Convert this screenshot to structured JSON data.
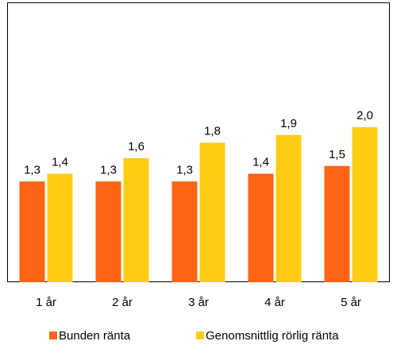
{
  "chart_data": {
    "type": "bar",
    "categories": [
      "1 år",
      "2 år",
      "3 år",
      "4 år",
      "5 år"
    ],
    "series": [
      {
        "name": "Bunden ränta",
        "color": "#FF6414",
        "values": [
          1.3,
          1.3,
          1.3,
          1.4,
          1.5
        ],
        "labels": [
          "1,3",
          "1,3",
          "1,3",
          "1,4",
          "1,5"
        ]
      },
      {
        "name": "Genomsnittlig rörlig ränta",
        "color": "#FFCC14",
        "values": [
          1.4,
          1.6,
          1.8,
          1.9,
          2.0
        ],
        "labels": [
          "1,4",
          "1,6",
          "1,8",
          "1,9",
          "2,0"
        ]
      }
    ],
    "title": "",
    "xlabel": "",
    "ylabel": "",
    "ylim": [
      0,
      3.6
    ],
    "grid": false,
    "legend_position": "bottom"
  }
}
